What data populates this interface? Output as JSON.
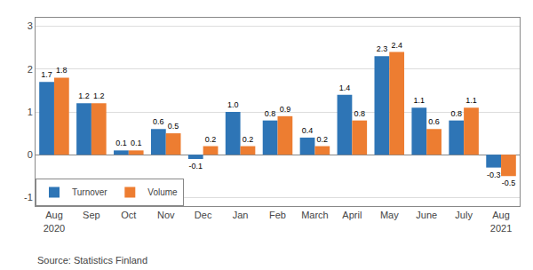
{
  "chart_data": {
    "type": "bar",
    "categories": [
      "Aug\n2020",
      "Sep",
      "Oct",
      "Nov",
      "Dec",
      "Jan",
      "Feb",
      "March",
      "April",
      "May",
      "June",
      "July",
      "Aug\n2021"
    ],
    "series": [
      {
        "name": "Turnover",
        "color": "#2E75B6",
        "values": [
          1.7,
          1.2,
          0.1,
          0.6,
          -0.1,
          1.0,
          0.8,
          0.4,
          1.4,
          2.3,
          1.1,
          0.8,
          -0.3
        ],
        "value_labels": [
          "1.7",
          "1.2",
          "0.1",
          "0.6",
          "-0.1",
          "1.0",
          "0.8",
          "0.4",
          "1.4",
          "2.3",
          "1.1",
          "0.8",
          "-0.3"
        ]
      },
      {
        "name": "Volume",
        "color": "#ED7D31",
        "values": [
          1.8,
          1.2,
          0.1,
          0.5,
          0.2,
          0.2,
          0.9,
          0.2,
          0.8,
          2.4,
          0.6,
          1.1,
          -0.5
        ]
      }
    ],
    "ylim": [
      -1.2,
      3.2
    ],
    "yticks": [
      -1,
      0,
      1,
      2,
      3
    ],
    "grid": true,
    "legend": "lower left",
    "data_labels": true,
    "annotations": [
      "Source: Statistics Finland"
    ]
  }
}
